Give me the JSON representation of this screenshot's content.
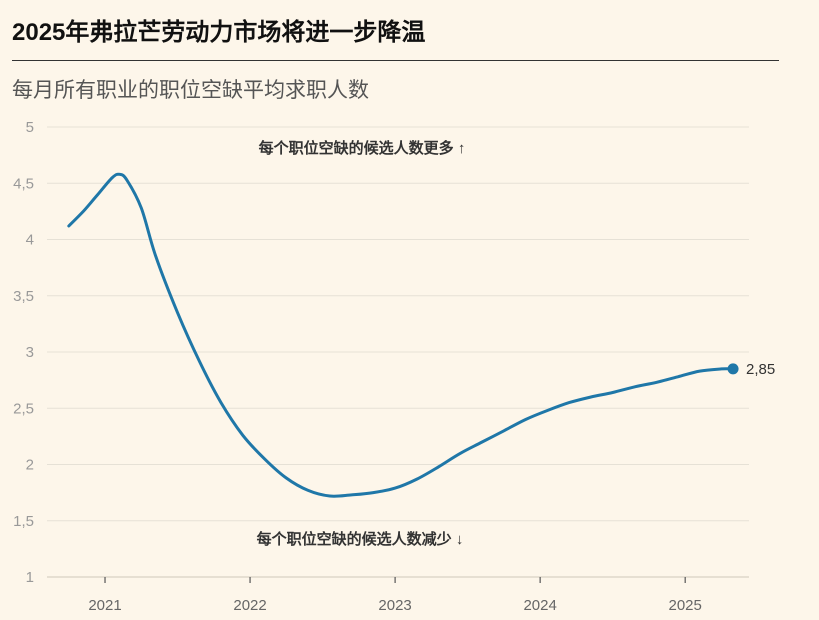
{
  "title": "2025年弗拉芒劳动力市场将进一步降温",
  "subtitle": "每月所有职业的职位空缺平均求职人数",
  "colors": {
    "background": "#fdf6ea",
    "line": "#1f77a8",
    "grid": "#e6e1d6"
  },
  "chart_data": {
    "type": "line",
    "title": "2025年弗拉芒劳动力市场将进一步降温",
    "subtitle": "每月所有职业的职位空缺平均求职人数",
    "xlabel": "",
    "ylabel": "",
    "ylim": [
      1,
      5
    ],
    "yticks": [
      "1",
      "1,5",
      "2",
      "2,5",
      "3",
      "3,5",
      "4",
      "4,5",
      "5"
    ],
    "ytick_values": [
      1,
      1.5,
      2,
      2.5,
      3,
      3.5,
      4,
      4.5,
      5
    ],
    "xticks": [
      "2021",
      "2022",
      "2023",
      "2024",
      "2025"
    ],
    "xtick_values": [
      2021,
      2022,
      2023,
      2024,
      2025
    ],
    "xlim": [
      2020.6,
      2025.44
    ],
    "grid": true,
    "annotations": {
      "upper": "每个职位空缺的候选人数更多 ↑",
      "lower": "每个职位空缺的候选人数减少 ↓"
    },
    "end_label": "2,85",
    "series": [
      {
        "x": [
          2020.75,
          2020.85,
          2020.95,
          2021.05,
          2021.1,
          2021.15,
          2021.25,
          2021.35,
          2021.5,
          2021.65,
          2021.8,
          2021.95,
          2022.1,
          2022.25,
          2022.4,
          2022.55,
          2022.7,
          2022.85,
          2023.0,
          2023.15,
          2023.3,
          2023.45,
          2023.6,
          2023.75,
          2023.9,
          2024.05,
          2024.2,
          2024.35,
          2024.5,
          2024.65,
          2024.8,
          2024.95,
          2025.1,
          2025.25,
          2025.33
        ],
        "y": [
          4.12,
          4.25,
          4.4,
          4.55,
          4.58,
          4.53,
          4.28,
          3.85,
          3.35,
          2.92,
          2.55,
          2.26,
          2.05,
          1.88,
          1.77,
          1.72,
          1.73,
          1.75,
          1.79,
          1.87,
          1.98,
          2.1,
          2.2,
          2.3,
          2.4,
          2.48,
          2.55,
          2.6,
          2.64,
          2.69,
          2.73,
          2.78,
          2.83,
          2.85,
          2.85
        ],
        "values": [
          4.12,
          4.25,
          4.4,
          4.55,
          4.58,
          4.53,
          4.28,
          3.85,
          3.35,
          2.92,
          2.55,
          2.26,
          2.05,
          1.88,
          1.77,
          1.72,
          1.73,
          1.75,
          1.79,
          1.87,
          1.98,
          2.1,
          2.2,
          2.3,
          2.4,
          2.48,
          2.55,
          2.6,
          2.64,
          2.69,
          2.73,
          2.78,
          2.83,
          2.85,
          2.85
        ]
      }
    ]
  }
}
